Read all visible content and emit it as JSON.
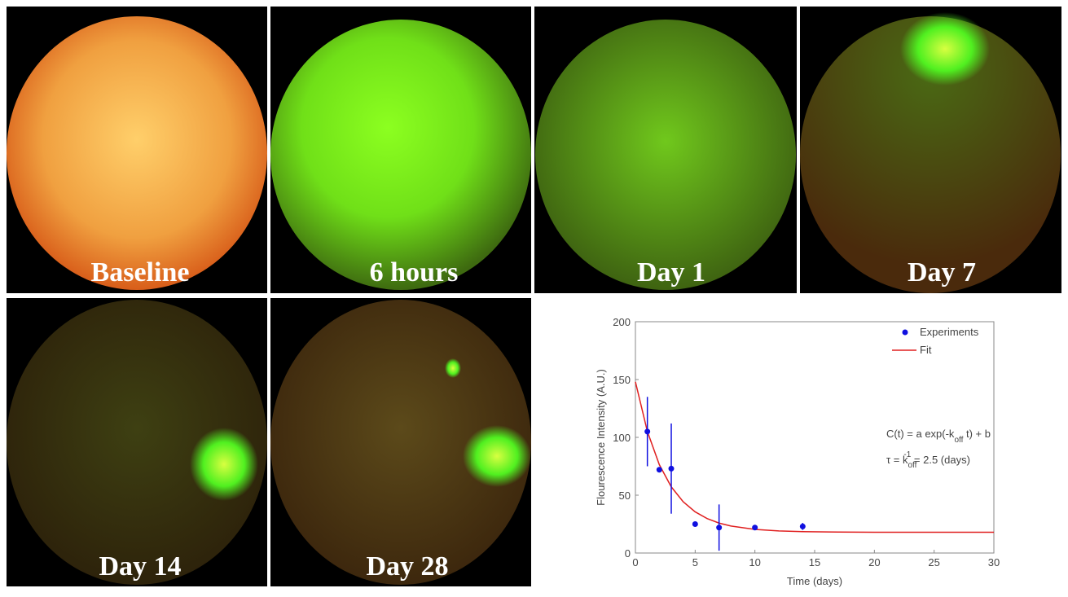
{
  "panels": [
    "Baseline",
    "6 hours",
    "Day 1",
    "Day 7",
    "Day 14",
    "Day 28"
  ],
  "chart_data": {
    "type": "scatter",
    "xlabel": "Time (days)",
    "ylabel": "Flourescence Intensity (A.U.)",
    "xlim": [
      0,
      30
    ],
    "ylim": [
      0,
      200
    ],
    "xticks": [
      0,
      5,
      10,
      15,
      20,
      25,
      30
    ],
    "yticks": [
      0,
      50,
      100,
      150,
      200
    ],
    "legend": "upper right",
    "series": [
      {
        "name": "Experiments",
        "color": "#1010e0",
        "x": [
          1,
          2,
          3,
          5,
          7,
          10,
          14
        ],
        "values": [
          105,
          72,
          73,
          25,
          22,
          22,
          23
        ],
        "errors": [
          30,
          2,
          39,
          2,
          20,
          1,
          3
        ]
      },
      {
        "name": "Fit",
        "color": "#e02020",
        "x": [
          0,
          1,
          2,
          3,
          4,
          5,
          6,
          7,
          8,
          10,
          12,
          14,
          17,
          20,
          25,
          30
        ],
        "values": [
          148,
          105.1,
          76.4,
          57.2,
          44.3,
          35.6,
          29.8,
          25.9,
          23.3,
          20.4,
          19.1,
          18.5,
          18.1,
          18.0,
          18.0,
          18.0
        ]
      }
    ],
    "annotations": [
      [
        "C(t) = a exp(-k",
        "off",
        " t) + b"
      ],
      [
        "τ = k",
        "off",
        "-1",
        " = 2.5 (days)"
      ]
    ]
  }
}
